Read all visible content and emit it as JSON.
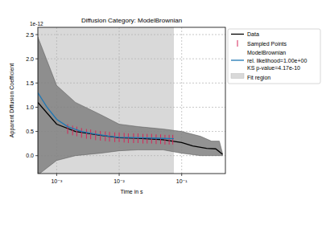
{
  "chart_data": {
    "type": "line",
    "title": "Diffusion Category: ModelBrownian",
    "x_label": "Time in s",
    "y_label": "Apparent Diffusion Coefficient",
    "annotations": [
      "1e-12"
    ],
    "log": "x",
    "grid": true,
    "legend": "outside right",
    "xlim": [
      0.0005,
      0.5
    ],
    "ylim": [
      -0.37,
      2.65
    ],
    "xticks": [
      {
        "value": 0.001,
        "label": "10⁻³"
      },
      {
        "value": 0.01,
        "label": "10⁻²"
      },
      {
        "value": 0.1,
        "label": "10⁻¹"
      }
    ],
    "yticks": [
      {
        "value": 0,
        "label": "0.0"
      },
      0.5,
      {
        "value": 1,
        "label": "1.0"
      },
      1.5,
      {
        "value": 2,
        "label": "2.0"
      },
      2.5
    ],
    "fit_region": {
      "name": "Fit region",
      "color": "#d9d9d9",
      "x": [
        0.0005,
        0.075
      ]
    },
    "series": [
      {
        "type": "band",
        "color": "#808080",
        "x": [
          0.0005,
          0.001,
          0.002,
          0.005,
          0.01,
          0.02,
          0.05,
          0.1,
          0.2,
          0.3,
          0.4,
          0.45
        ],
        "values": [
          2.45,
          1.45,
          1.1,
          0.85,
          0.65,
          0.6,
          0.55,
          0.5,
          0.4,
          0.3,
          0.3,
          0.05
        ],
        "lower": [
          -0.4,
          -0.1,
          0.0,
          0.05,
          0.1,
          0.12,
          0.12,
          0.05,
          0.0,
          0.0,
          0.0,
          0.0
        ]
      },
      {
        "name": "Data",
        "type": "line",
        "color": "#000000",
        "line_style": "solid",
        "x": [
          0.0005,
          0.001,
          0.002,
          0.005,
          0.01,
          0.02,
          0.05,
          0.1,
          0.15,
          0.25,
          0.35,
          0.45
        ],
        "values": [
          1.1,
          0.65,
          0.5,
          0.42,
          0.37,
          0.36,
          0.33,
          0.27,
          0.2,
          0.15,
          0.14,
          0.03
        ]
      },
      {
        "name": "Sampled Points",
        "type": "scatter",
        "color": "#d6275a",
        "marker": "vline",
        "x": [
          0.0015,
          0.0018,
          0.0021,
          0.0025,
          0.003,
          0.0035,
          0.0042,
          0.005,
          0.006,
          0.007,
          0.0085,
          0.01,
          0.012,
          0.014,
          0.017,
          0.02,
          0.024,
          0.028,
          0.033,
          0.039,
          0.046,
          0.054,
          0.063,
          0.072
        ],
        "values": [
          0.55,
          0.52,
          0.5,
          0.47,
          0.45,
          0.44,
          0.42,
          0.41,
          0.4,
          0.39,
          0.38,
          0.38,
          0.37,
          0.36,
          0.36,
          0.36,
          0.35,
          0.35,
          0.35,
          0.34,
          0.34,
          0.33,
          0.33,
          0.33
        ]
      },
      {
        "name": "ModelBrownian\nrel. likelihood=1.00e+00\nKS p-value=4.17e-10",
        "type": "line",
        "color": "#1f77b4",
        "line_style": "solid",
        "x": [
          0.0005,
          0.0007,
          0.001,
          0.0015,
          0.0025,
          0.004,
          0.007,
          0.01,
          0.02,
          0.04,
          0.075
        ],
        "values": [
          1.3,
          1.0,
          0.75,
          0.6,
          0.5,
          0.45,
          0.4,
          0.38,
          0.37,
          0.36,
          0.35
        ]
      }
    ]
  }
}
